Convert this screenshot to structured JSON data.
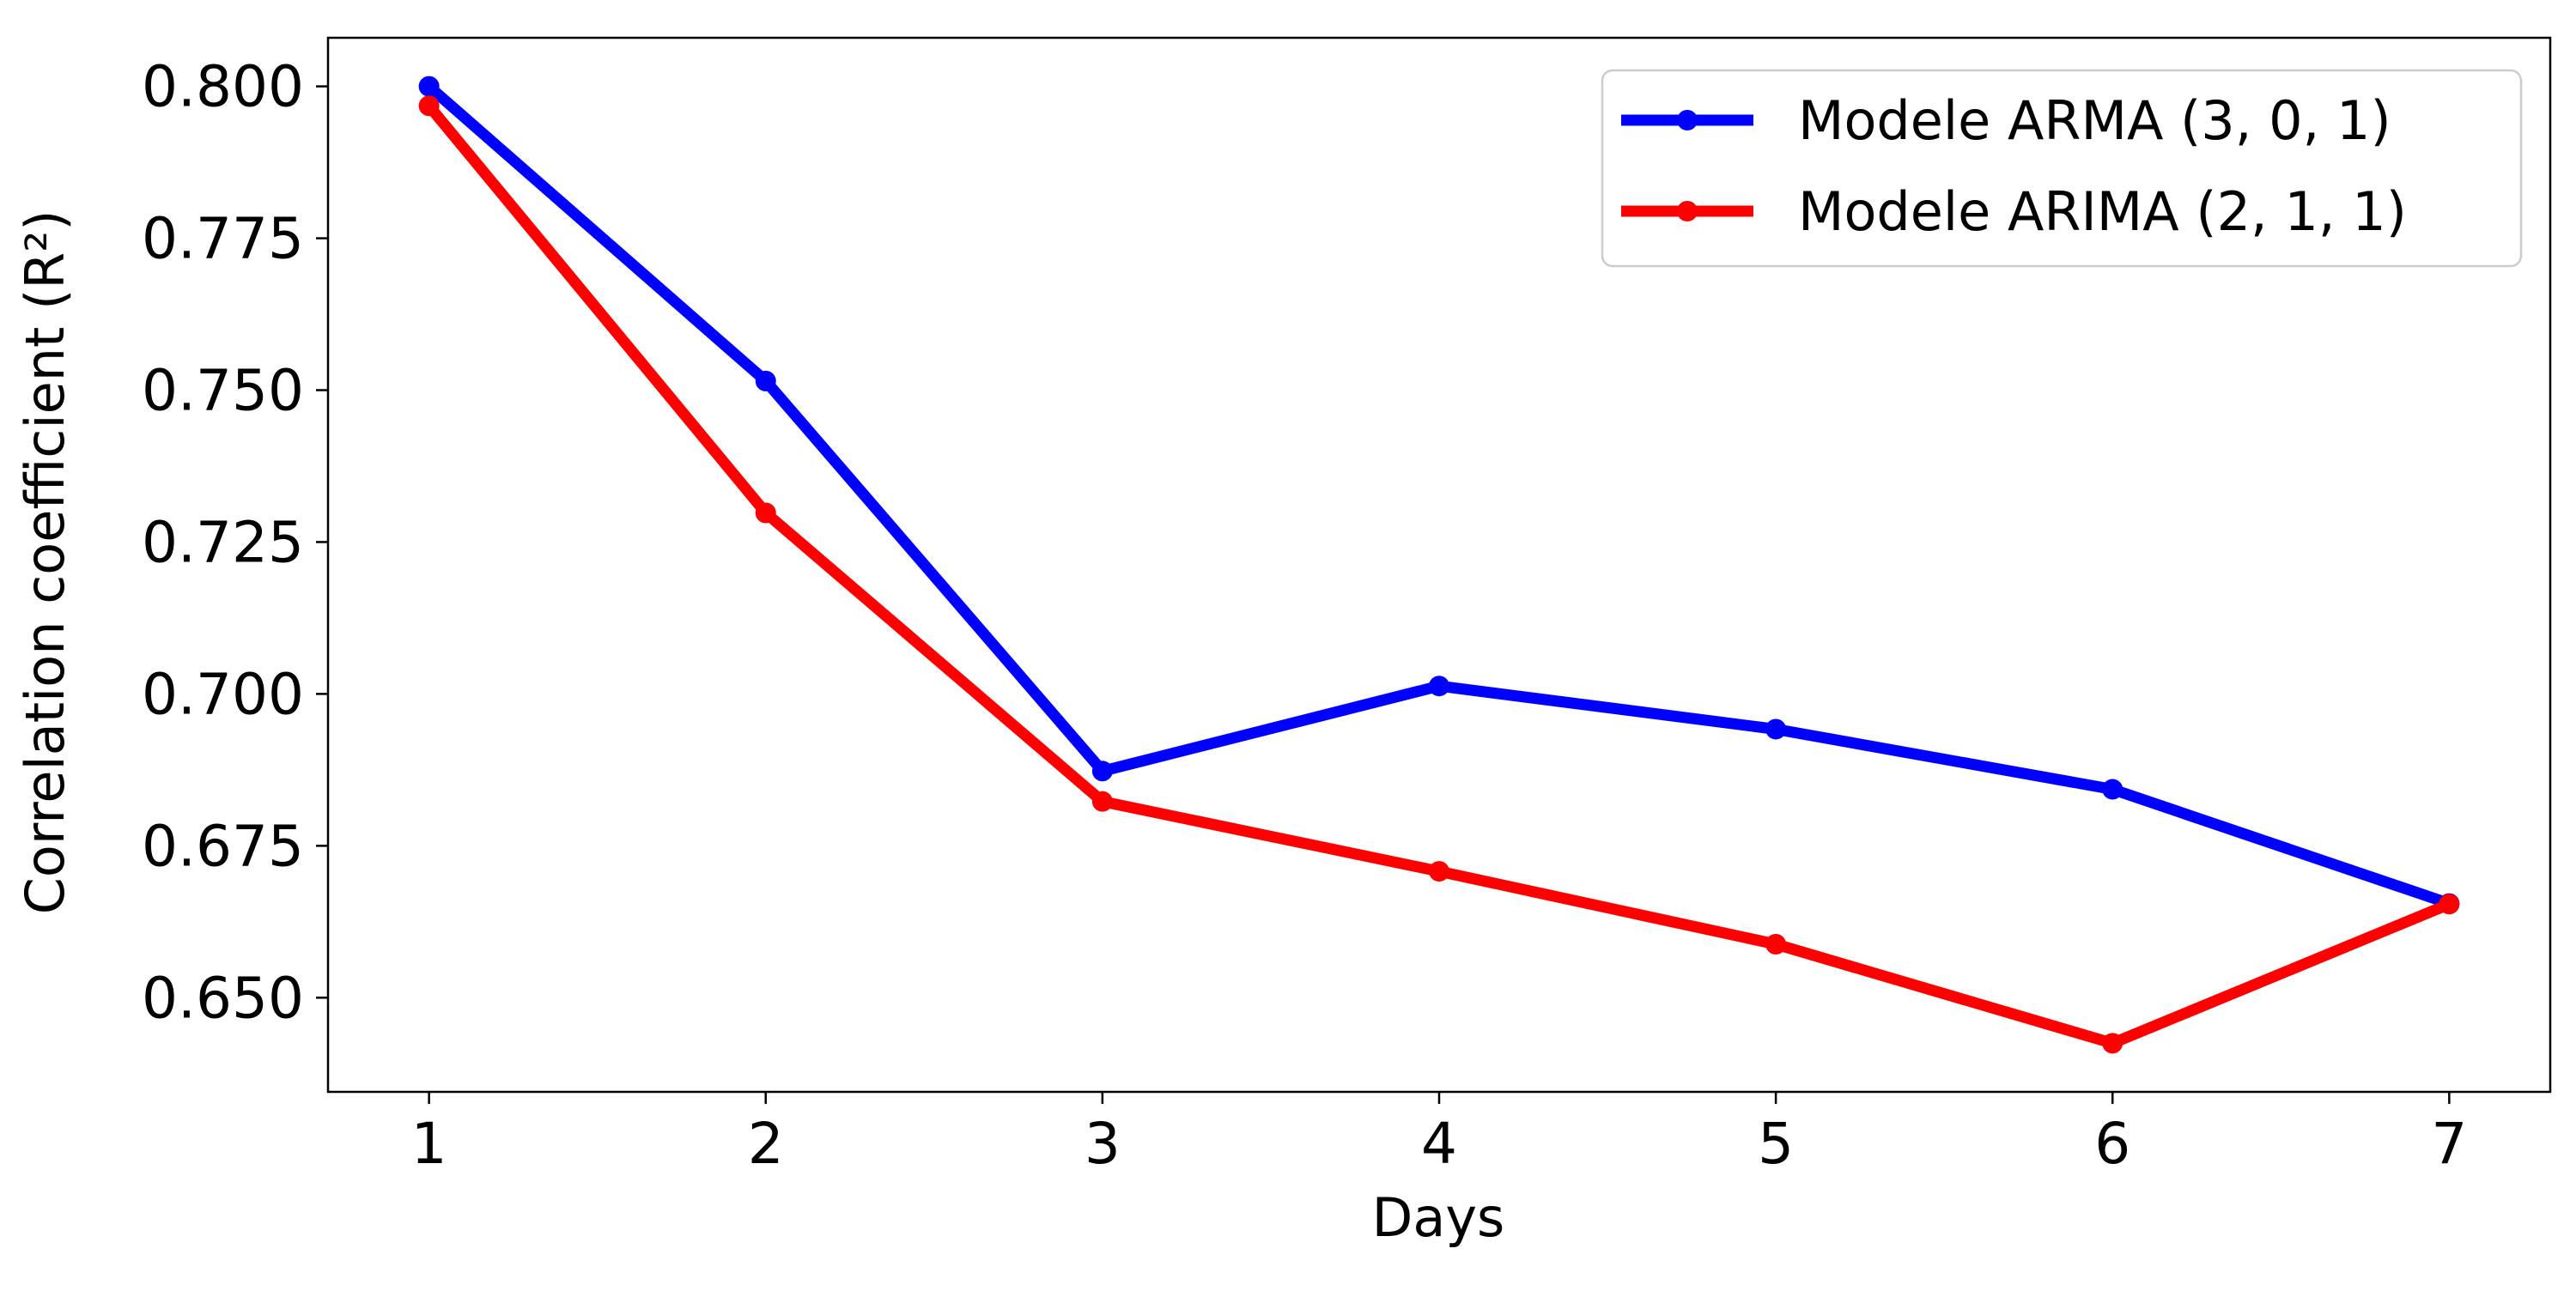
{
  "chart_data": {
    "type": "line",
    "title": "",
    "xlabel": "Days",
    "ylabel": "Correlation coefficient (R²)",
    "x": [
      1,
      2,
      3,
      4,
      5,
      6,
      7
    ],
    "xlim": [
      0.7,
      7.3
    ],
    "ylim": [
      0.6345,
      0.808
    ],
    "x_ticks": [
      1,
      2,
      3,
      4,
      5,
      6,
      7
    ],
    "y_ticks": [
      0.65,
      0.675,
      0.7,
      0.725,
      0.75,
      0.775,
      0.8
    ],
    "y_tick_labels": [
      "0.650",
      "0.675",
      "0.700",
      "0.725",
      "0.750",
      "0.775",
      "0.800"
    ],
    "grid": false,
    "legend_position": "top-right",
    "series": [
      {
        "name": "Modele ARMA (3, 0, 1)",
        "color": "#0000ff",
        "marker": "circle",
        "values": [
          0.8,
          0.7515,
          0.6873,
          0.7013,
          0.6942,
          0.6843,
          0.6655
        ]
      },
      {
        "name": "Modele ARIMA (2, 1, 1)",
        "color": "#ff0000",
        "marker": "circle",
        "values": [
          0.7968,
          0.7298,
          0.6823,
          0.6708,
          0.6588,
          0.6425,
          0.6654
        ]
      }
    ]
  }
}
